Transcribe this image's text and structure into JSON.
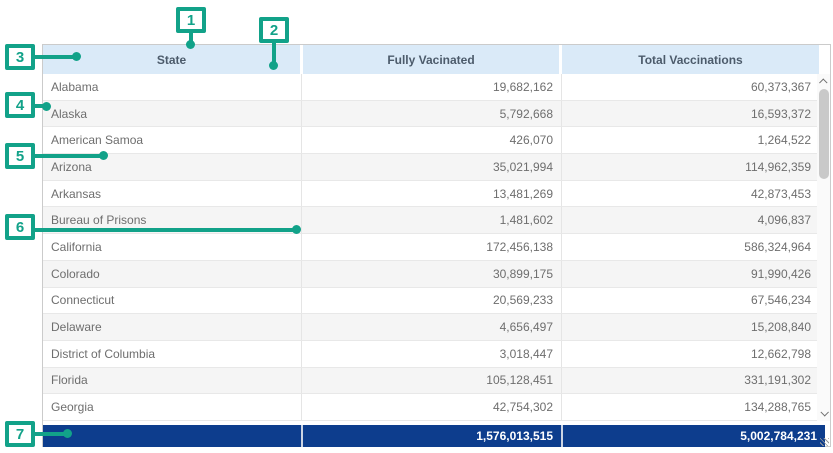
{
  "colors": {
    "annotation_teal": "#12a289",
    "header_bg": "#daeaf8",
    "header_text": "#4c5b6b",
    "row_text": "#6e6e6e",
    "alt_row_bg": "#f5f5f5",
    "total_row_bg": "#0d3d8d",
    "total_row_text": "#ffffff"
  },
  "annotations": {
    "markers": [
      {
        "label": "1"
      },
      {
        "label": "2"
      },
      {
        "label": "3"
      },
      {
        "label": "4"
      },
      {
        "label": "5"
      },
      {
        "label": "6"
      },
      {
        "label": "7"
      }
    ]
  },
  "table": {
    "columns": [
      {
        "label": "State"
      },
      {
        "label": "Fully Vacinated"
      },
      {
        "label": "Total Vaccinations"
      }
    ],
    "rows": [
      [
        "Alabama",
        "19,682,162",
        "60,373,367"
      ],
      [
        "Alaska",
        "5,792,668",
        "16,593,372"
      ],
      [
        "American Samoa",
        "426,070",
        "1,264,522"
      ],
      [
        "Arizona",
        "35,021,994",
        "114,962,359"
      ],
      [
        "Arkansas",
        "13,481,269",
        "42,873,453"
      ],
      [
        "Bureau of Prisons",
        "1,481,602",
        "4,096,837"
      ],
      [
        "California",
        "172,456,138",
        "586,324,964"
      ],
      [
        "Colorado",
        "30,899,175",
        "91,990,426"
      ],
      [
        "Connecticut",
        "20,569,233",
        "67,546,234"
      ],
      [
        "Delaware",
        "4,656,497",
        "15,208,840"
      ],
      [
        "District of Columbia",
        "3,018,447",
        "12,662,798"
      ],
      [
        "Florida",
        "105,128,451",
        "331,191,302"
      ],
      [
        "Georgia",
        "42,754,302",
        "134,288,765"
      ]
    ],
    "total_row": {
      "state": "",
      "fully_vaccinated": "1,576,013,515",
      "total_vaccinations": "5,002,784,231"
    }
  }
}
